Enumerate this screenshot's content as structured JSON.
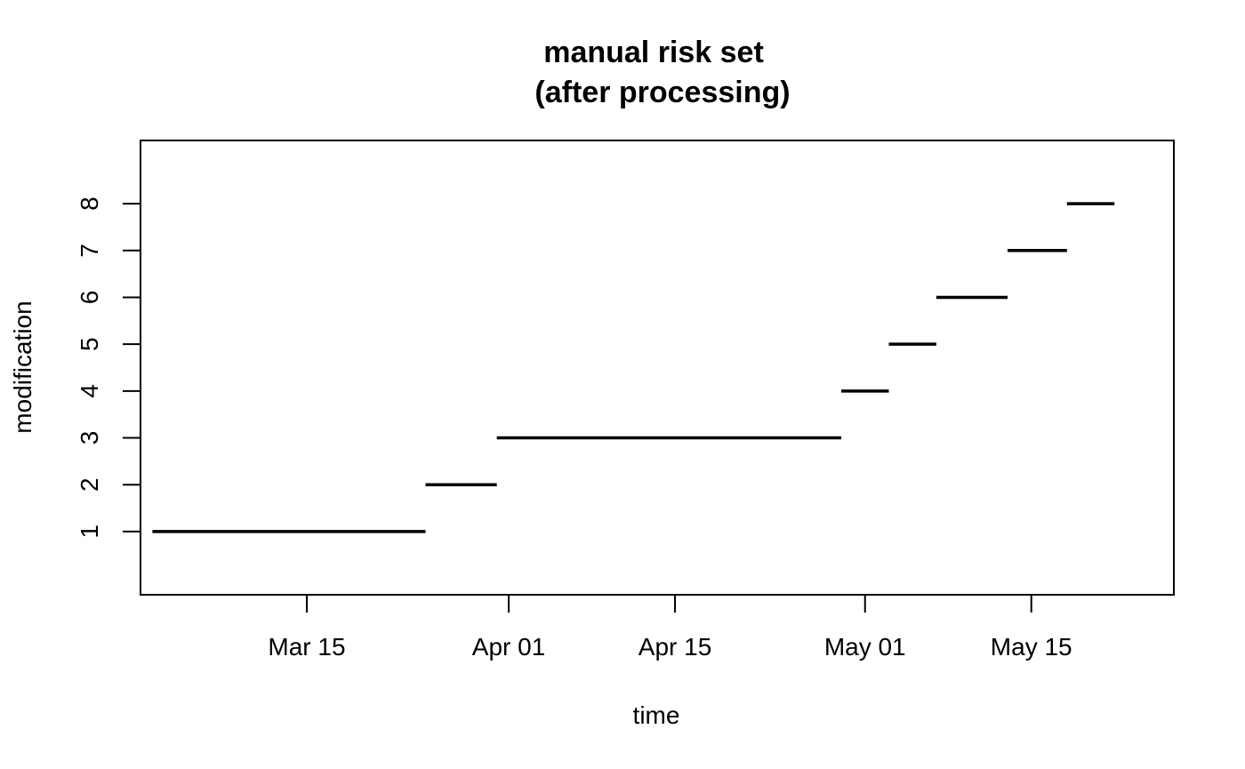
{
  "chart_data": {
    "type": "segment",
    "title_line1": "manual risk set",
    "title_line2": "(after processing)",
    "xlabel": "time",
    "ylabel": "modification",
    "x_ticks": [
      {
        "date": "2020-03-15",
        "label": "Mar 15"
      },
      {
        "date": "2020-04-01",
        "label": "Apr 01"
      },
      {
        "date": "2020-04-15",
        "label": "Apr 15"
      },
      {
        "date": "2020-05-01",
        "label": "May 01"
      },
      {
        "date": "2020-05-15",
        "label": "May 15"
      }
    ],
    "y_ticks": [
      1,
      2,
      3,
      4,
      5,
      6,
      7,
      8
    ],
    "xlim": [
      "2020-03-01",
      "2020-05-27"
    ],
    "ylim": [
      -0.35,
      9.35
    ],
    "grid": false,
    "segments": [
      {
        "modification": 1,
        "start": "2020-03-02",
        "end": "2020-03-25"
      },
      {
        "modification": 2,
        "start": "2020-03-25",
        "end": "2020-03-31"
      },
      {
        "modification": 3,
        "start": "2020-03-31",
        "end": "2020-04-29"
      },
      {
        "modification": 4,
        "start": "2020-04-29",
        "end": "2020-05-03"
      },
      {
        "modification": 5,
        "start": "2020-05-03",
        "end": "2020-05-07"
      },
      {
        "modification": 6,
        "start": "2020-05-07",
        "end": "2020-05-13"
      },
      {
        "modification": 7,
        "start": "2020-05-13",
        "end": "2020-05-18"
      },
      {
        "modification": 8,
        "start": "2020-05-18",
        "end": "2020-05-22"
      }
    ]
  }
}
